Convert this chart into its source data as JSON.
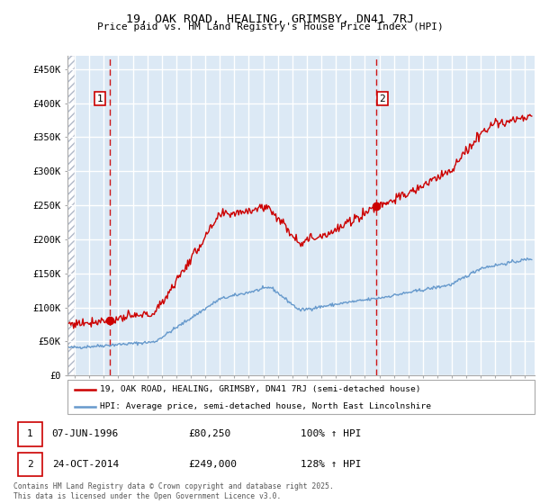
{
  "title": "19, OAK ROAD, HEALING, GRIMSBY, DN41 7RJ",
  "subtitle": "Price paid vs. HM Land Registry's House Price Index (HPI)",
  "legend_line1": "19, OAK ROAD, HEALING, GRIMSBY, DN41 7RJ (semi-detached house)",
  "legend_line2": "HPI: Average price, semi-detached house, North East Lincolnshire",
  "footnote": "Contains HM Land Registry data © Crown copyright and database right 2025.\nThis data is licensed under the Open Government Licence v3.0.",
  "annotation1_date": "07-JUN-1996",
  "annotation1_price": "£80,250",
  "annotation1_hpi": "100% ↑ HPI",
  "annotation2_date": "24-OCT-2014",
  "annotation2_price": "£249,000",
  "annotation2_hpi": "128% ↑ HPI",
  "red_color": "#cc0000",
  "blue_color": "#6699cc",
  "bg_color": "#dce9f5",
  "grid_color": "#ffffff",
  "ylim": [
    0,
    470000
  ],
  "yticks": [
    0,
    50000,
    100000,
    150000,
    200000,
    250000,
    300000,
    350000,
    400000,
    450000
  ],
  "ytick_labels": [
    "£0",
    "£50K",
    "£100K",
    "£150K",
    "£200K",
    "£250K",
    "£300K",
    "£350K",
    "£400K",
    "£450K"
  ],
  "sale1_x": 1996.44,
  "sale1_y": 80250,
  "sale2_x": 2014.81,
  "sale2_y": 249000,
  "xmin": 1993.5,
  "xmax": 2025.7
}
